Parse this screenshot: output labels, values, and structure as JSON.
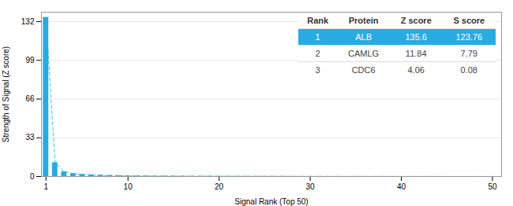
{
  "chart_data": {
    "type": "bar",
    "x": [
      1,
      2,
      3,
      4,
      5,
      6,
      7,
      8,
      9,
      10,
      11,
      12,
      13,
      14,
      15,
      16,
      17,
      18,
      19,
      20,
      21,
      22,
      23,
      24,
      25,
      26,
      27,
      28,
      29,
      30,
      31,
      32,
      33,
      34,
      35,
      36,
      37,
      38,
      39,
      40,
      41,
      42,
      43,
      44,
      45,
      46,
      47,
      48,
      49,
      50
    ],
    "series": [
      {
        "type": "bar",
        "color": "#29ABE2",
        "values": [
          135.6,
          11.84,
          4.06,
          2.5,
          1.8,
          1.4,
          1.1,
          0.9,
          0.75,
          0.6,
          0.5,
          0.45,
          0.4,
          0.37,
          0.34,
          0.31,
          0.28,
          0.26,
          0.24,
          0.22,
          0.2,
          0.19,
          0.18,
          0.17,
          0.16,
          0.15,
          0.14,
          0.13,
          0.12,
          0.11,
          0.1,
          0.095,
          0.09,
          0.085,
          0.08,
          0.075,
          0.07,
          0.065,
          0.06,
          0.055,
          0.05,
          0.047,
          0.044,
          0.041,
          0.038,
          0.035,
          0.032,
          0.029,
          0.026,
          0.023
        ]
      },
      {
        "type": "line",
        "color": "#29ABE2",
        "line_style": "dashed",
        "values": [
          135.6,
          11.84,
          4.06,
          2.5,
          1.8,
          1.4,
          1.1,
          0.9,
          0.75,
          0.6,
          0.5,
          0.45,
          0.4,
          0.37,
          0.34,
          0.31,
          0.28,
          0.26,
          0.24,
          0.22,
          0.2,
          0.19,
          0.18,
          0.17,
          0.16,
          0.15,
          0.14,
          0.13,
          0.12,
          0.11,
          0.1,
          0.095,
          0.09,
          0.085,
          0.08,
          0.075,
          0.07,
          0.065,
          0.06,
          0.055,
          0.05,
          0.047,
          0.044,
          0.041,
          0.038,
          0.035,
          0.032,
          0.029,
          0.026,
          0.023
        ]
      }
    ],
    "xlabel": "Signal Rank (Top 50)",
    "ylabel": "Strength of Signal (Z score)",
    "xlim": [
      0.5,
      51
    ],
    "xticks": [
      1,
      10,
      20,
      30,
      40,
      50
    ],
    "ylim": [
      0,
      140
    ],
    "yticks": [
      0,
      33,
      66,
      99,
      132
    ],
    "grid": true,
    "table": {
      "headers": [
        "Rank",
        "Protein",
        "Z score",
        "S score"
      ],
      "rows": [
        [
          "1",
          "ALB",
          "135.6",
          "123.76"
        ],
        [
          "2",
          "CAMLG",
          "11.84",
          "7.79"
        ],
        [
          "3",
          "CDC6",
          "4.06",
          "0.08"
        ]
      ]
    }
  }
}
